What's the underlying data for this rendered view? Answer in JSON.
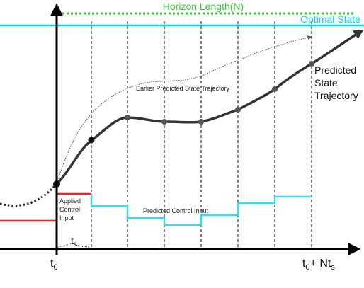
{
  "colors": {
    "horizon": "#33cc33",
    "optimal": "#00d8e8",
    "applied": "#ee2222",
    "predicted_input": "#33ddee",
    "trajectory": "#333333",
    "axis": "#000000"
  },
  "labels": {
    "horizon_length": "Horizon Length(N)",
    "optimal_state": "Optimal State",
    "predicted_state_trajectory": [
      "Predicted",
      "State",
      "Trajectory"
    ],
    "earlier_trajectory": "Earlier Predicted State Trajectory",
    "predicted_control_input": "Predicted Control Input",
    "applied_control_input": [
      "Applied",
      "Control",
      "Input"
    ],
    "ts": "t",
    "ts_sub": "s",
    "t0": "t",
    "t0_sub": "0",
    "t0_nts_prefix": "t",
    "t0_nts_sub0": "0",
    "t0_nts_mid": "+ Nt",
    "t0_nts_sub1": "s"
  }
}
